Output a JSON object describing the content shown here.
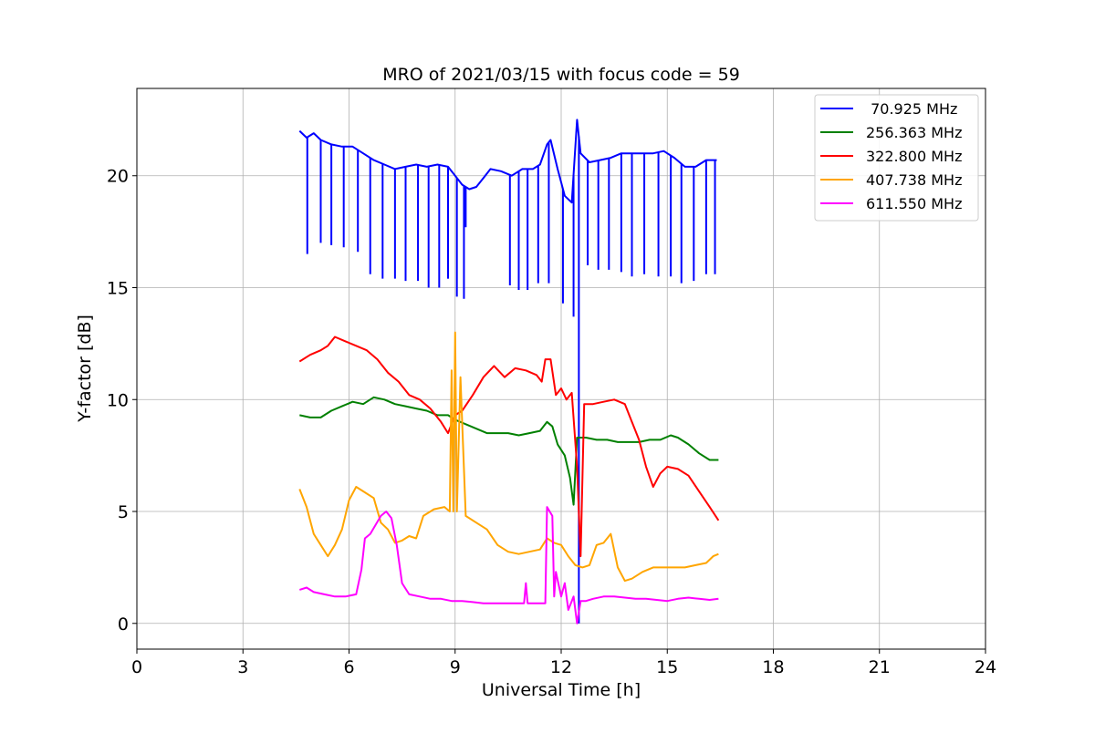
{
  "chart_data": {
    "type": "line",
    "title": "MRO of 2021/03/15 with focus code = 59",
    "xlabel": "Universal Time [h]",
    "ylabel": "Y-factor [dB]",
    "xlim": [
      0,
      24
    ],
    "ylim": [
      -1.15,
      23.9
    ],
    "xticks": [
      0,
      3,
      6,
      9,
      12,
      15,
      18,
      21,
      24
    ],
    "yticks": [
      0,
      5,
      10,
      15,
      20
    ],
    "grid": true,
    "legend_position": "top-right",
    "series": [
      {
        "name": " 70.925 MHz",
        "color": "#0000ff",
        "points": [
          [
            4.6,
            22.0
          ],
          [
            4.8,
            21.7
          ],
          [
            5.0,
            21.9
          ],
          [
            5.2,
            21.6
          ],
          [
            5.5,
            21.4
          ],
          [
            5.8,
            21.3
          ],
          [
            6.1,
            21.3
          ],
          [
            6.4,
            21.0
          ],
          [
            6.7,
            20.7
          ],
          [
            7.0,
            20.5
          ],
          [
            7.3,
            20.3
          ],
          [
            7.6,
            20.4
          ],
          [
            7.9,
            20.5
          ],
          [
            8.2,
            20.4
          ],
          [
            8.5,
            20.5
          ],
          [
            8.8,
            20.4
          ],
          [
            9.0,
            20.0
          ],
          [
            9.2,
            19.6
          ],
          [
            9.4,
            19.4
          ],
          [
            9.6,
            19.5
          ],
          [
            9.8,
            19.9
          ],
          [
            10.0,
            20.3
          ],
          [
            10.3,
            20.2
          ],
          [
            10.6,
            20.0
          ],
          [
            10.9,
            20.3
          ],
          [
            11.2,
            20.3
          ],
          [
            11.4,
            20.5
          ],
          [
            11.6,
            21.4
          ],
          [
            11.7,
            21.6
          ],
          [
            11.9,
            20.3
          ],
          [
            12.1,
            19.1
          ],
          [
            12.3,
            18.8
          ],
          [
            12.45,
            22.5
          ],
          [
            12.55,
            21.0
          ],
          [
            12.8,
            20.6
          ],
          [
            13.1,
            20.7
          ],
          [
            13.4,
            20.8
          ],
          [
            13.7,
            21.0
          ],
          [
            14.0,
            21.0
          ],
          [
            14.3,
            21.0
          ],
          [
            14.6,
            21.0
          ],
          [
            14.9,
            21.1
          ],
          [
            15.2,
            20.8
          ],
          [
            15.5,
            20.4
          ],
          [
            15.8,
            20.4
          ],
          [
            16.1,
            20.7
          ],
          [
            16.4,
            20.7
          ]
        ],
        "dips": [
          [
            4.82,
            16.5
          ],
          [
            5.2,
            17.0
          ],
          [
            5.5,
            16.9
          ],
          [
            5.85,
            16.8
          ],
          [
            6.25,
            16.6
          ],
          [
            6.6,
            15.6
          ],
          [
            6.95,
            15.4
          ],
          [
            7.3,
            15.4
          ],
          [
            7.6,
            15.3
          ],
          [
            7.95,
            15.3
          ],
          [
            8.25,
            15.0
          ],
          [
            8.55,
            15.0
          ],
          [
            8.8,
            15.4
          ],
          [
            9.05,
            14.6
          ],
          [
            9.25,
            14.5
          ],
          [
            9.3,
            17.7
          ],
          [
            10.55,
            15.1
          ],
          [
            10.8,
            14.9
          ],
          [
            11.05,
            14.9
          ],
          [
            11.35,
            15.2
          ],
          [
            11.65,
            15.2
          ],
          [
            12.05,
            14.3
          ],
          [
            12.35,
            13.7
          ],
          [
            12.5,
            0.0
          ],
          [
            12.75,
            16.0
          ],
          [
            13.05,
            15.8
          ],
          [
            13.35,
            15.8
          ],
          [
            13.7,
            15.7
          ],
          [
            14.0,
            15.5
          ],
          [
            14.35,
            15.6
          ],
          [
            14.75,
            15.5
          ],
          [
            15.1,
            15.5
          ],
          [
            15.4,
            15.2
          ],
          [
            15.75,
            15.3
          ],
          [
            16.1,
            15.6
          ],
          [
            16.35,
            15.6
          ]
        ]
      },
      {
        "name": "256.363 MHz",
        "color": "#008000",
        "points": [
          [
            4.6,
            9.3
          ],
          [
            4.9,
            9.2
          ],
          [
            5.2,
            9.2
          ],
          [
            5.5,
            9.5
          ],
          [
            5.8,
            9.7
          ],
          [
            6.1,
            9.9
          ],
          [
            6.4,
            9.8
          ],
          [
            6.7,
            10.1
          ],
          [
            7.0,
            10.0
          ],
          [
            7.3,
            9.8
          ],
          [
            7.6,
            9.7
          ],
          [
            7.9,
            9.6
          ],
          [
            8.2,
            9.5
          ],
          [
            8.5,
            9.3
          ],
          [
            8.8,
            9.3
          ],
          [
            9.0,
            9.1
          ],
          [
            9.3,
            8.9
          ],
          [
            9.6,
            8.7
          ],
          [
            9.9,
            8.5
          ],
          [
            10.2,
            8.5
          ],
          [
            10.5,
            8.5
          ],
          [
            10.8,
            8.4
          ],
          [
            11.1,
            8.5
          ],
          [
            11.4,
            8.6
          ],
          [
            11.6,
            9.0
          ],
          [
            11.75,
            8.8
          ],
          [
            11.9,
            8.0
          ],
          [
            12.1,
            7.5
          ],
          [
            12.25,
            6.5
          ],
          [
            12.35,
            5.3
          ],
          [
            12.45,
            8.3
          ],
          [
            12.7,
            8.3
          ],
          [
            13.0,
            8.2
          ],
          [
            13.3,
            8.2
          ],
          [
            13.6,
            8.1
          ],
          [
            13.9,
            8.1
          ],
          [
            14.2,
            8.1
          ],
          [
            14.5,
            8.2
          ],
          [
            14.8,
            8.2
          ],
          [
            15.1,
            8.4
          ],
          [
            15.3,
            8.3
          ],
          [
            15.6,
            8.0
          ],
          [
            15.9,
            7.6
          ],
          [
            16.2,
            7.3
          ],
          [
            16.45,
            7.3
          ]
        ]
      },
      {
        "name": "322.800 MHz",
        "color": "#ff0000",
        "points": [
          [
            4.6,
            11.7
          ],
          [
            4.9,
            12.0
          ],
          [
            5.2,
            12.2
          ],
          [
            5.4,
            12.4
          ],
          [
            5.6,
            12.8
          ],
          [
            5.9,
            12.6
          ],
          [
            6.2,
            12.4
          ],
          [
            6.5,
            12.2
          ],
          [
            6.8,
            11.8
          ],
          [
            7.1,
            11.2
          ],
          [
            7.4,
            10.8
          ],
          [
            7.7,
            10.2
          ],
          [
            8.0,
            10.0
          ],
          [
            8.3,
            9.6
          ],
          [
            8.6,
            9.0
          ],
          [
            8.8,
            8.5
          ],
          [
            9.0,
            9.3
          ],
          [
            9.2,
            9.5
          ],
          [
            9.5,
            10.2
          ],
          [
            9.8,
            11.0
          ],
          [
            10.1,
            11.5
          ],
          [
            10.4,
            11.0
          ],
          [
            10.7,
            11.4
          ],
          [
            11.0,
            11.3
          ],
          [
            11.3,
            11.1
          ],
          [
            11.45,
            10.8
          ],
          [
            11.55,
            11.8
          ],
          [
            11.7,
            11.8
          ],
          [
            11.85,
            10.2
          ],
          [
            12.0,
            10.5
          ],
          [
            12.15,
            10.0
          ],
          [
            12.3,
            10.3
          ],
          [
            12.45,
            7.0
          ],
          [
            12.55,
            3.0
          ],
          [
            12.65,
            9.8
          ],
          [
            12.9,
            9.8
          ],
          [
            13.2,
            9.9
          ],
          [
            13.5,
            10.0
          ],
          [
            13.8,
            9.8
          ],
          [
            14.0,
            9.0
          ],
          [
            14.2,
            8.2
          ],
          [
            14.4,
            7.0
          ],
          [
            14.6,
            6.1
          ],
          [
            14.8,
            6.7
          ],
          [
            15.0,
            7.0
          ],
          [
            15.3,
            6.9
          ],
          [
            15.6,
            6.6
          ],
          [
            15.9,
            5.9
          ],
          [
            16.2,
            5.2
          ],
          [
            16.45,
            4.6
          ]
        ]
      },
      {
        "name": "407.738 MHz",
        "color": "#ffa500",
        "points": [
          [
            4.6,
            6.0
          ],
          [
            4.8,
            5.2
          ],
          [
            5.0,
            4.0
          ],
          [
            5.2,
            3.5
          ],
          [
            5.4,
            3.0
          ],
          [
            5.6,
            3.5
          ],
          [
            5.8,
            4.2
          ],
          [
            6.0,
            5.5
          ],
          [
            6.2,
            6.1
          ],
          [
            6.4,
            5.9
          ],
          [
            6.7,
            5.6
          ],
          [
            6.9,
            4.5
          ],
          [
            7.1,
            4.2
          ],
          [
            7.3,
            3.6
          ],
          [
            7.5,
            3.7
          ],
          [
            7.7,
            3.9
          ],
          [
            7.9,
            3.8
          ],
          [
            8.1,
            4.8
          ],
          [
            8.4,
            5.1
          ],
          [
            8.7,
            5.2
          ],
          [
            8.85,
            5.0
          ],
          [
            8.9,
            11.3
          ],
          [
            8.95,
            5.0
          ],
          [
            9.0,
            13.0
          ],
          [
            9.05,
            5.0
          ],
          [
            9.15,
            11.0
          ],
          [
            9.3,
            4.8
          ],
          [
            9.6,
            4.5
          ],
          [
            9.9,
            4.2
          ],
          [
            10.2,
            3.5
          ],
          [
            10.5,
            3.2
          ],
          [
            10.8,
            3.1
          ],
          [
            11.1,
            3.2
          ],
          [
            11.4,
            3.3
          ],
          [
            11.6,
            3.8
          ],
          [
            11.8,
            3.6
          ],
          [
            12.0,
            3.5
          ],
          [
            12.2,
            3.0
          ],
          [
            12.4,
            2.6
          ],
          [
            12.6,
            2.5
          ],
          [
            12.8,
            2.6
          ],
          [
            13.0,
            3.5
          ],
          [
            13.2,
            3.6
          ],
          [
            13.4,
            4.0
          ],
          [
            13.6,
            2.5
          ],
          [
            13.8,
            1.9
          ],
          [
            14.0,
            2.0
          ],
          [
            14.3,
            2.3
          ],
          [
            14.6,
            2.5
          ],
          [
            14.9,
            2.5
          ],
          [
            15.2,
            2.5
          ],
          [
            15.5,
            2.5
          ],
          [
            15.8,
            2.6
          ],
          [
            16.1,
            2.7
          ],
          [
            16.3,
            3.0
          ],
          [
            16.45,
            3.1
          ]
        ]
      },
      {
        "name": "611.550 MHz",
        "color": "#ff00ff",
        "points": [
          [
            4.6,
            1.5
          ],
          [
            4.8,
            1.6
          ],
          [
            5.0,
            1.4
          ],
          [
            5.3,
            1.3
          ],
          [
            5.6,
            1.2
          ],
          [
            5.9,
            1.2
          ],
          [
            6.2,
            1.3
          ],
          [
            6.35,
            2.4
          ],
          [
            6.45,
            3.8
          ],
          [
            6.6,
            4.0
          ],
          [
            6.75,
            4.4
          ],
          [
            6.9,
            4.8
          ],
          [
            7.05,
            5.0
          ],
          [
            7.2,
            4.7
          ],
          [
            7.35,
            3.5
          ],
          [
            7.5,
            1.8
          ],
          [
            7.7,
            1.3
          ],
          [
            8.0,
            1.2
          ],
          [
            8.3,
            1.1
          ],
          [
            8.6,
            1.1
          ],
          [
            8.9,
            1.0
          ],
          [
            9.2,
            1.0
          ],
          [
            9.5,
            0.95
          ],
          [
            9.8,
            0.9
          ],
          [
            10.1,
            0.9
          ],
          [
            10.4,
            0.9
          ],
          [
            10.7,
            0.9
          ],
          [
            10.95,
            0.9
          ],
          [
            11.0,
            1.8
          ],
          [
            11.05,
            0.9
          ],
          [
            11.3,
            0.9
          ],
          [
            11.55,
            0.9
          ],
          [
            11.6,
            5.2
          ],
          [
            11.75,
            4.8
          ],
          [
            11.8,
            1.2
          ],
          [
            11.85,
            2.3
          ],
          [
            12.0,
            1.2
          ],
          [
            12.1,
            1.8
          ],
          [
            12.2,
            0.6
          ],
          [
            12.35,
            1.2
          ],
          [
            12.45,
            0.0
          ],
          [
            12.55,
            1.0
          ],
          [
            12.7,
            1.0
          ],
          [
            12.9,
            1.1
          ],
          [
            13.2,
            1.2
          ],
          [
            13.5,
            1.2
          ],
          [
            13.8,
            1.15
          ],
          [
            14.1,
            1.1
          ],
          [
            14.4,
            1.1
          ],
          [
            14.7,
            1.05
          ],
          [
            15.0,
            1.0
          ],
          [
            15.3,
            1.1
          ],
          [
            15.6,
            1.15
          ],
          [
            15.9,
            1.1
          ],
          [
            16.2,
            1.05
          ],
          [
            16.45,
            1.1
          ]
        ]
      }
    ]
  }
}
